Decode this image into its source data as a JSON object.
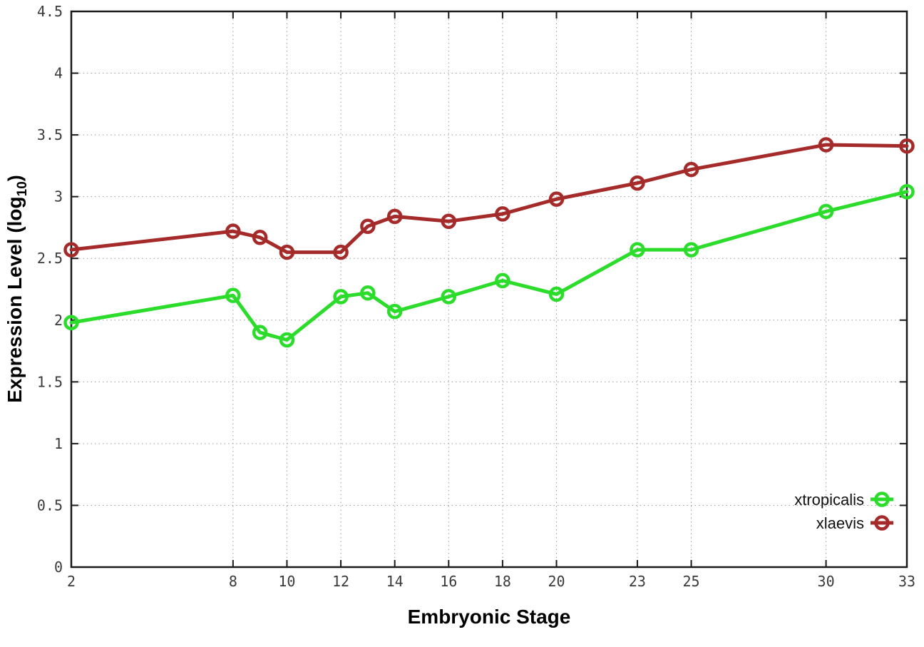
{
  "chart_data": {
    "type": "line",
    "title": "",
    "xlabel": "Embryonic Stage",
    "ylabel": "Expression Level (log10)",
    "ylabel_parts": {
      "pre": "Expression Level (log",
      "sub": "10",
      "post": ")"
    },
    "x": [
      2,
      8,
      9,
      10,
      12,
      13,
      14,
      16,
      18,
      20,
      23,
      25,
      30,
      33
    ],
    "series": [
      {
        "name": "xtropicalis",
        "color": "#2bdc2b",
        "values": [
          1.98,
          2.2,
          1.9,
          1.84,
          2.19,
          2.22,
          2.07,
          2.19,
          2.32,
          2.21,
          2.57,
          2.57,
          2.88,
          3.04
        ]
      },
      {
        "name": "xlaevis",
        "color": "#a52a2a",
        "values": [
          2.57,
          2.72,
          2.67,
          2.55,
          2.55,
          2.76,
          2.84,
          2.8,
          2.86,
          2.98,
          3.11,
          3.22,
          3.42,
          3.41
        ]
      }
    ],
    "xlim": [
      2,
      33
    ],
    "ylim": [
      0,
      4.5
    ],
    "xticks": [
      2,
      8,
      10,
      12,
      14,
      16,
      18,
      20,
      23,
      25,
      30,
      33
    ],
    "xtick_labels": [
      "2",
      "8",
      "10",
      "12",
      "14",
      "16",
      "18",
      "20",
      "23",
      "25",
      "30",
      "33"
    ],
    "yticks": [
      0,
      0.5,
      1,
      1.5,
      2,
      2.5,
      3,
      3.5,
      4,
      4.5
    ],
    "ytick_labels": [
      "0",
      "0.5",
      "1",
      "1.5",
      "2",
      "2.5",
      "3",
      "3.5",
      "4",
      "4.5"
    ],
    "grid": true,
    "legend_position": "bottom-right",
    "legend_entries": [
      "xtropicalis",
      "xlaevis"
    ]
  },
  "style_colors": {
    "border": "#1a1a1a",
    "grid": "#9a9a9a",
    "tick_text": "#3a3a3a",
    "background": "#ffffff"
  }
}
